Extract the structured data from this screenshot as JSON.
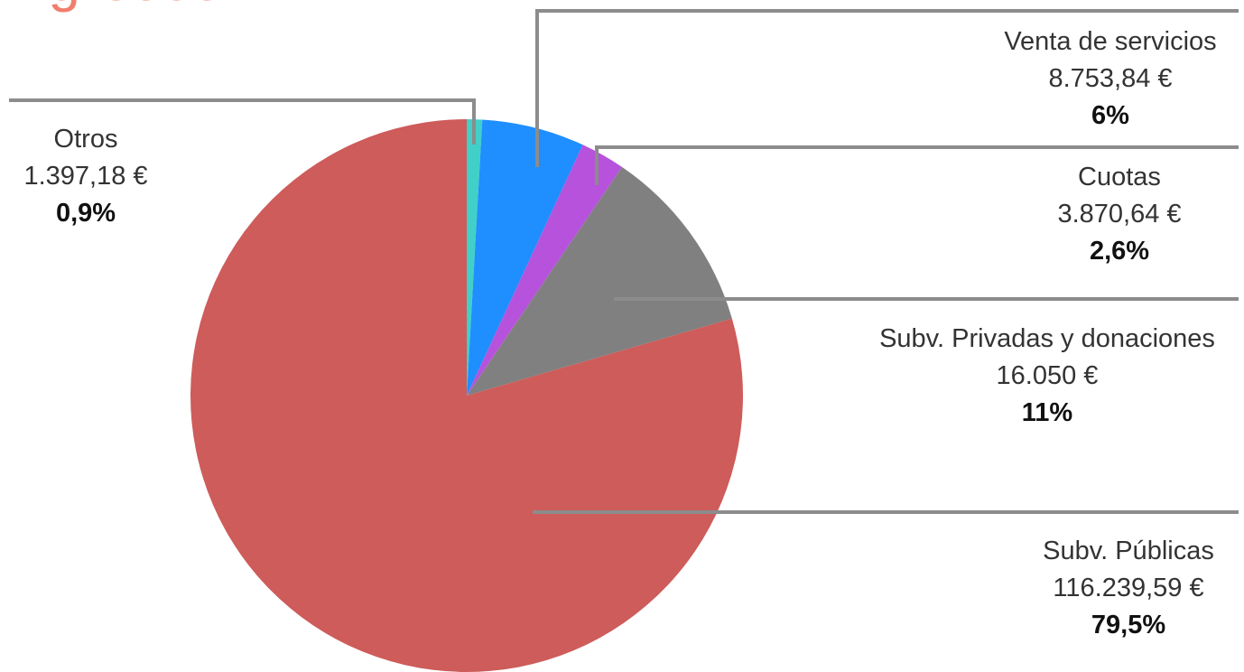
{
  "chart_data": {
    "type": "pie",
    "title": "Ingresos",
    "slices": [
      {
        "name": "Otros",
        "amount": "1.397,18 €",
        "percent_label": "0,9%",
        "value": 0.9,
        "color": "#40d0c8"
      },
      {
        "name": "Venta de servicios",
        "amount": "8.753,84 €",
        "percent_label": "6%",
        "value": 6,
        "color": "#1f8eff"
      },
      {
        "name": "Cuotas",
        "amount": "3.870,64 €",
        "percent_label": "2,6%",
        "value": 2.6,
        "color": "#b652dc"
      },
      {
        "name": "Subv. Privadas y donaciones",
        "amount": "16.050 €",
        "percent_label": "11%",
        "value": 11,
        "color": "#808080"
      },
      {
        "name": "Subv. Públicas",
        "amount": "116.239,59 €",
        "percent_label": "79,5%",
        "value": 79.5,
        "color": "#cd5c5a"
      }
    ],
    "leader_color": "#8c8c8c",
    "title_color": "#f07e6e"
  }
}
